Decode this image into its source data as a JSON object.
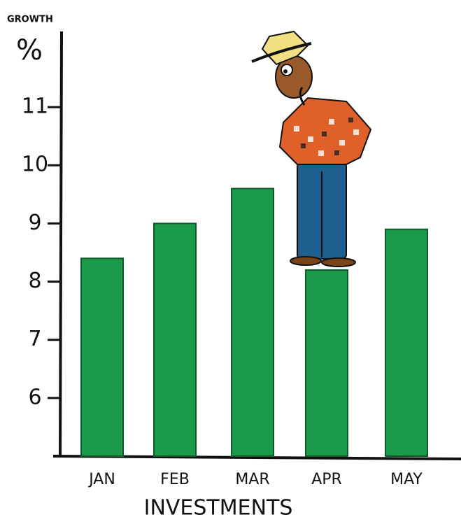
{
  "chart_data": {
    "type": "bar",
    "y_label": "GROWTH",
    "y_unit": "%",
    "x_label": "INVESTMENTS",
    "categories": [
      "JAN",
      "FEB",
      "MAR",
      "APR",
      "MAY"
    ],
    "values": [
      8.4,
      9.0,
      9.6,
      8.2,
      8.9
    ],
    "color": "#1c9a4c",
    "ylim": [
      5,
      12.3
    ],
    "yticks": [
      6,
      7,
      8,
      9,
      10,
      11
    ],
    "grid": false
  }
}
